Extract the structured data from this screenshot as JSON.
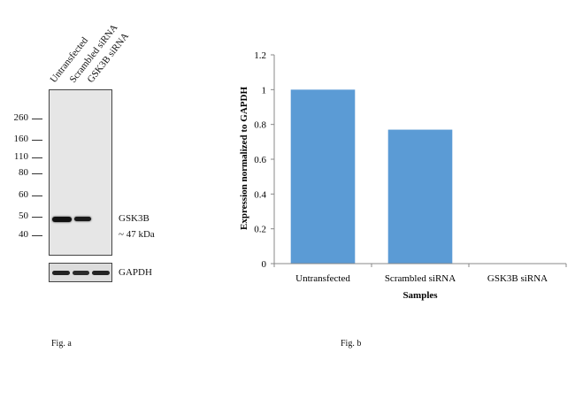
{
  "blot": {
    "lanes": [
      "Untransfected",
      "Scrambled siRNA",
      "GSK3B siRNA"
    ],
    "markers": [
      "260",
      "160",
      "110",
      "80",
      "60",
      "50",
      "40"
    ],
    "target_label": "GSK3B",
    "target_size": "~ 47 kDa",
    "loading_label": "GAPDH",
    "caption": "Fig. a"
  },
  "chart_data": {
    "type": "bar",
    "categories": [
      "Untransfected",
      "Scrambled siRNA",
      "GSK3B siRNA"
    ],
    "values": [
      1.0,
      0.77,
      0.0
    ],
    "title": "",
    "xlabel": "Samples",
    "ylabel": "Expression  normalized to GAPDH",
    "ylim": [
      0,
      1.2
    ],
    "yticks": [
      "0",
      "0.2",
      "0.4",
      "0.6",
      "0.8",
      "1",
      "1.2"
    ],
    "bar_color": "#5b9bd5",
    "grid": false,
    "caption": "Fig. b"
  }
}
